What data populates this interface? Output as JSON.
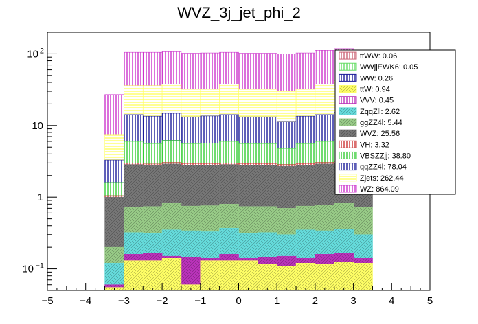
{
  "chart_data": {
    "type": "bar",
    "stacked": true,
    "title": "WVZ_3j_jet_phi_2",
    "xlabel": "",
    "ylabel": "",
    "xlim": [
      -5,
      5
    ],
    "ylim": [
      0.05,
      200
    ],
    "log_y": true,
    "x_ticks": [
      "−5",
      "−4",
      "−3",
      "−2",
      "−1",
      "0",
      "1",
      "2",
      "3",
      "4",
      "5"
    ],
    "x_tick_values": [
      -5,
      -4,
      -3,
      -2,
      -1,
      0,
      1,
      2,
      3,
      4,
      5
    ],
    "y_ticks": [
      {
        "base": "10",
        "exp": "−1",
        "value": 0.1
      },
      {
        "base": "1",
        "exp": "",
        "value": 1
      },
      {
        "base": "10",
        "exp": "",
        "value": 10
      },
      {
        "base": "10",
        "exp": "2",
        "value": 100
      }
    ],
    "bin_edges": [
      -3.5,
      -3.0,
      -2.5,
      -2.0,
      -1.5,
      -1.0,
      -0.5,
      0.0,
      0.5,
      1.0,
      1.5,
      2.0,
      2.5,
      3.0,
      3.5
    ],
    "stack_bottom": 0.05,
    "cumulative_tops": [
      {
        "name": "WZ",
        "color": "#cc33cc",
        "values": [
          27,
          105,
          105,
          107,
          102,
          103,
          105,
          102,
          102,
          100,
          103,
          112,
          118,
          112
        ]
      },
      {
        "name": "Zjets",
        "color": "#ffff66",
        "values": [
          7.5,
          36,
          36,
          38,
          32,
          32,
          38,
          32,
          32,
          30,
          32,
          38,
          42,
          38
        ]
      },
      {
        "name": "qqZZ4l",
        "color": "#1a1a99",
        "values": [
          3.3,
          14.2,
          13.5,
          14.8,
          13.2,
          13.6,
          14.2,
          13.2,
          13.2,
          11.4,
          13.5,
          14.2,
          15.2,
          14.2
        ]
      },
      {
        "name": "VBSZZjj",
        "color": "#33cc33",
        "values": [
          1.6,
          6.0,
          5.6,
          6.2,
          5.6,
          5.7,
          6.0,
          5.6,
          5.6,
          4.8,
          5.6,
          6.0,
          6.4,
          6.0
        ]
      },
      {
        "name": "VH",
        "color": "#cc3333",
        "values": [
          1.05,
          3.0,
          2.9,
          3.05,
          2.95,
          2.95,
          3.0,
          2.95,
          2.95,
          2.85,
          2.95,
          3.05,
          3.1,
          3.0
        ]
      },
      {
        "name": "WVZ",
        "color": "#777777",
        "values": [
          1.0,
          2.85,
          2.75,
          2.9,
          2.8,
          2.8,
          2.85,
          2.8,
          2.8,
          2.7,
          2.8,
          2.9,
          2.95,
          2.85
        ]
      },
      {
        "name": "ggZZ4l",
        "color": "#99cc88",
        "values": [
          0.2,
          0.72,
          0.74,
          0.82,
          0.75,
          0.76,
          0.8,
          0.74,
          0.74,
          0.7,
          0.75,
          0.78,
          0.82,
          0.72
        ]
      },
      {
        "name": "ZqqZll",
        "color": "#66dddd",
        "values": [
          0.12,
          0.32,
          0.31,
          0.35,
          0.34,
          0.33,
          0.37,
          0.31,
          0.32,
          0.3,
          0.35,
          0.34,
          0.36,
          0.3
        ]
      },
      {
        "name": "VVV",
        "color": "#bb33bb",
        "values": [
          0.06,
          0.16,
          0.165,
          0.15,
          0.145,
          0.14,
          0.16,
          0.14,
          0.145,
          0.15,
          0.14,
          0.16,
          0.165,
          0.14
        ]
      },
      {
        "name": "ttW",
        "color": "#ffff66",
        "values": [
          0.055,
          0.13,
          0.13,
          0.14,
          0.06,
          0.13,
          0.13,
          0.13,
          0.115,
          0.11,
          0.12,
          0.115,
          0.125,
          0.12
        ]
      }
    ],
    "legend": {
      "placement": "top-right",
      "entries": [
        {
          "label": "ttWW: 0.06",
          "color": "#cc6677"
        },
        {
          "label": "WWjjEWK6: 0.05",
          "color": "#66dd66"
        },
        {
          "label": "WW: 0.26",
          "color": "#1a1a99"
        },
        {
          "label": "ttW: 0.94",
          "color": "#ffff66"
        },
        {
          "label": "VVV: 0.45",
          "color": "#bb33bb"
        },
        {
          "label": "ZqqZll: 2.62",
          "color": "#66dddd"
        },
        {
          "label": "ggZZ4l: 5.44",
          "color": "#99cc88"
        },
        {
          "label": "WVZ: 25.56",
          "color": "#777777"
        },
        {
          "label": "VH: 3.32",
          "color": "#cc3333"
        },
        {
          "label": "VBSZZjj: 38.80",
          "color": "#33cc33"
        },
        {
          "label": "qqZZ4l: 78.04",
          "color": "#1a1a99"
        },
        {
          "label": "Zjets: 262.44",
          "color": "#ffff66"
        },
        {
          "label": "WZ: 864.09",
          "color": "#cc33cc"
        }
      ]
    },
    "grid": false
  }
}
